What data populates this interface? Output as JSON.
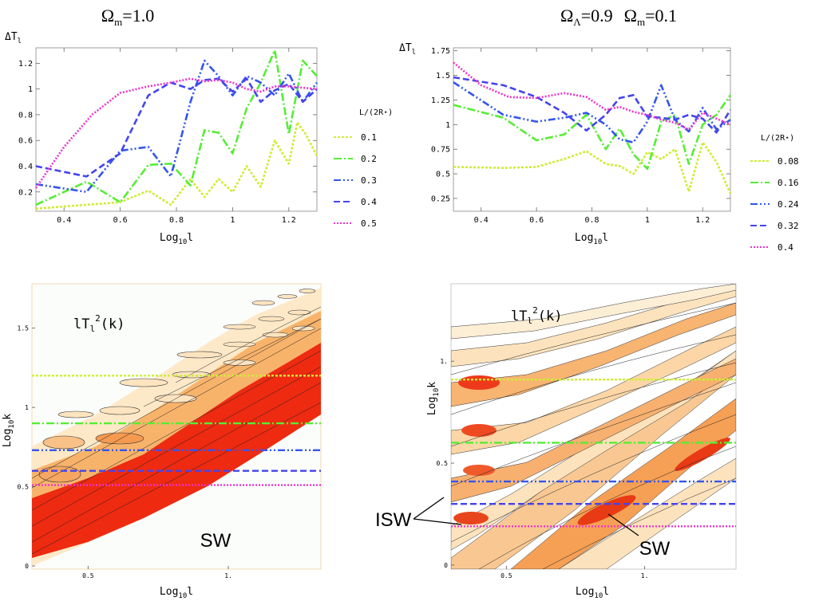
{
  "chart_data": [
    {
      "type": "line",
      "title": "Ωm=1.0",
      "title_main": "Ω",
      "title_sub": "m",
      "title_rest": "=1.0",
      "ylabel": "ΔT",
      "ylabel_sub": "l",
      "xlabel": "Log",
      "xlabel_sub": "10",
      "xlabel_rest": "l",
      "xlim": [
        0.3,
        1.3
      ],
      "ylim": [
        0.05,
        1.32
      ],
      "xticks": [
        0.4,
        0.6,
        0.8,
        1,
        1.2
      ],
      "xtick_labels": [
        "0.4",
        "0.6",
        "0.8",
        "1",
        "1.2"
      ],
      "yticks": [
        0.2,
        0.4,
        0.6,
        0.8,
        1,
        1.2
      ],
      "ytick_labels": [
        "0.2",
        "0.4",
        "0.6",
        "0.8",
        "1",
        "1.2"
      ],
      "legend_title": "L/(2R⋆)",
      "series": [
        {
          "name": "0.1",
          "color": "#ccee33",
          "dash": "3,2",
          "x": [
            0.3,
            0.48,
            0.6,
            0.7,
            0.78,
            0.85,
            0.9,
            0.95,
            1.0,
            1.05,
            1.1,
            1.15,
            1.2,
            1.23,
            1.26,
            1.3
          ],
          "y": [
            0.07,
            0.1,
            0.12,
            0.21,
            0.1,
            0.3,
            0.16,
            0.3,
            0.2,
            0.4,
            0.24,
            0.6,
            0.42,
            0.74,
            0.65,
            0.48
          ]
        },
        {
          "name": "0.2",
          "color": "#55ee33",
          "dash": "10,3,2,3",
          "x": [
            0.3,
            0.48,
            0.6,
            0.7,
            0.78,
            0.85,
            0.9,
            0.95,
            1.0,
            1.05,
            1.1,
            1.15,
            1.2,
            1.25,
            1.3
          ],
          "y": [
            0.1,
            0.28,
            0.12,
            0.41,
            0.42,
            0.25,
            0.68,
            0.66,
            0.5,
            0.85,
            1.05,
            1.3,
            0.65,
            1.22,
            1.1
          ]
        },
        {
          "name": "0.3",
          "color": "#3355ee",
          "dash": "9,3,2,3,2,3",
          "x": [
            0.3,
            0.48,
            0.6,
            0.7,
            0.78,
            0.85,
            0.9,
            0.95,
            1.0,
            1.05,
            1.1,
            1.15,
            1.2,
            1.25,
            1.3
          ],
          "y": [
            0.26,
            0.2,
            0.52,
            0.55,
            0.32,
            0.9,
            1.22,
            1.1,
            0.95,
            1.1,
            1.05,
            0.95,
            1.12,
            0.9,
            1.05
          ]
        },
        {
          "name": "0.4",
          "color": "#4444ee",
          "dash": "8,4",
          "x": [
            0.3,
            0.48,
            0.6,
            0.7,
            0.78,
            0.85,
            0.9,
            0.95,
            1.0,
            1.05,
            1.1,
            1.15,
            1.2,
            1.25,
            1.3
          ],
          "y": [
            0.4,
            0.32,
            0.5,
            0.95,
            1.05,
            1.0,
            1.07,
            1.08,
            0.98,
            1.08,
            0.9,
            0.99,
            1.04,
            0.9,
            1.0
          ]
        },
        {
          "name": "0.5",
          "color": "#ee33cc",
          "dash": "2,2",
          "x": [
            0.3,
            0.4,
            0.5,
            0.6,
            0.7,
            0.78,
            0.85,
            0.9,
            0.95,
            1.0,
            1.05,
            1.1,
            1.15,
            1.2,
            1.3
          ],
          "y": [
            0.23,
            0.55,
            0.8,
            0.97,
            1.02,
            1.05,
            1.08,
            1.06,
            1.07,
            1.05,
            1.0,
            0.98,
            1.02,
            1.02,
            1.0
          ]
        }
      ]
    },
    {
      "type": "line",
      "title": "ΩΛ=0.9   Ωm=0.1",
      "title_a_main": "Ω",
      "title_a_sub": "Λ",
      "title_a_rest": "=0.9",
      "title_b_main": "Ω",
      "title_b_sub": "m",
      "title_b_rest": "=0.1",
      "ylabel": "ΔT",
      "ylabel_sub": "l",
      "xlabel": "Log",
      "xlabel_sub": "10",
      "xlabel_rest": "l",
      "xlim": [
        0.3,
        1.3
      ],
      "ylim": [
        0.12,
        1.78
      ],
      "xticks": [
        0.4,
        0.6,
        0.8,
        1,
        1.2
      ],
      "xtick_labels": [
        "0.4",
        "0.6",
        "0.8",
        "1",
        "1.2"
      ],
      "yticks": [
        0.25,
        0.5,
        0.75,
        1,
        1.25,
        1.5,
        1.75
      ],
      "ytick_labels": [
        "0.25",
        "0.5",
        "0.75",
        "1",
        "1.25",
        "1.5",
        "1.75"
      ],
      "legend_title": "L/(2R⋆)",
      "series": [
        {
          "name": "0.08",
          "color": "#ccee33",
          "dash": "3,2",
          "x": [
            0.3,
            0.48,
            0.6,
            0.7,
            0.78,
            0.85,
            0.9,
            0.95,
            1.0,
            1.05,
            1.1,
            1.15,
            1.2,
            1.25,
            1.3
          ],
          "y": [
            0.57,
            0.56,
            0.57,
            0.65,
            0.73,
            0.6,
            0.58,
            0.5,
            0.72,
            0.65,
            0.75,
            0.32,
            0.82,
            0.62,
            0.3
          ]
        },
        {
          "name": "0.16",
          "color": "#55ee33",
          "dash": "10,3,2,3",
          "x": [
            0.3,
            0.48,
            0.6,
            0.7,
            0.78,
            0.85,
            0.9,
            0.95,
            1.0,
            1.05,
            1.1,
            1.15,
            1.2,
            1.25,
            1.3
          ],
          "y": [
            1.2,
            1.07,
            0.84,
            0.9,
            1.1,
            0.75,
            0.96,
            0.7,
            0.55,
            1.03,
            1.1,
            0.6,
            1.0,
            1.1,
            1.3
          ]
        },
        {
          "name": "0.24",
          "color": "#3355ee",
          "dash": "9,3,2,3,2,3",
          "x": [
            0.3,
            0.48,
            0.6,
            0.7,
            0.78,
            0.85,
            0.9,
            0.95,
            1.0,
            1.05,
            1.1,
            1.15,
            1.2,
            1.25,
            1.3
          ],
          "y": [
            1.43,
            1.1,
            1.03,
            1.07,
            1.12,
            1.0,
            0.85,
            0.82,
            1.03,
            1.4,
            1.05,
            0.93,
            1.17,
            0.95,
            1.05
          ]
        },
        {
          "name": "0.32",
          "color": "#4444ee",
          "dash": "8,4",
          "x": [
            0.3,
            0.48,
            0.6,
            0.7,
            0.78,
            0.85,
            0.9,
            0.95,
            1.0,
            1.05,
            1.1,
            1.15,
            1.2,
            1.25,
            1.3
          ],
          "y": [
            1.48,
            1.4,
            1.28,
            1.12,
            0.94,
            1.1,
            1.27,
            1.3,
            1.08,
            1.07,
            1.05,
            1.1,
            1.06,
            0.92,
            1.15
          ]
        },
        {
          "name": "0.4",
          "color": "#ee33cc",
          "dash": "2,2",
          "x": [
            0.3,
            0.4,
            0.5,
            0.6,
            0.7,
            0.78,
            0.85,
            0.9,
            0.95,
            1.0,
            1.05,
            1.1,
            1.15,
            1.2,
            1.3
          ],
          "y": [
            1.63,
            1.4,
            1.28,
            1.27,
            1.32,
            1.28,
            1.15,
            1.18,
            1.13,
            1.1,
            1.05,
            1.02,
            0.95,
            1.12,
            1.0
          ]
        }
      ]
    },
    {
      "type": "contour",
      "title": "lT_l^2(k)",
      "label_main": "lT",
      "label_sub": "l",
      "label_sup": "2",
      "label_rest": "(k)",
      "xlabel": "Log",
      "xlabel_sub": "10",
      "xlabel_rest": "l",
      "ylabel": "Log",
      "ylabel_sub": "10",
      "ylabel_rest": "k",
      "xlim": [
        0.3,
        1.33
      ],
      "ylim": [
        -0.02,
        1.78
      ],
      "xtick_labels": [
        "0.5",
        "1."
      ],
      "xticks": [
        0.5,
        1.0
      ],
      "ytick_labels": [
        "0",
        "0.5",
        "1",
        "1.5"
      ],
      "yticks": [
        0,
        0.5,
        1,
        1.5
      ],
      "annotation": "SW",
      "lines": [
        {
          "name": "0.1",
          "y": 1.2,
          "color": "#ccee33",
          "dash": "3,2"
        },
        {
          "name": "0.2",
          "y": 0.9,
          "color": "#55ee33",
          "dash": "10,3,2,3"
        },
        {
          "name": "0.3",
          "y": 0.73,
          "color": "#3355ee",
          "dash": "9,3,2,3,2,3"
        },
        {
          "name": "0.4",
          "y": 0.6,
          "color": "#4444ee",
          "dash": "8,4"
        },
        {
          "name": "0.5",
          "y": 0.51,
          "color": "#ee33cc",
          "dash": "2,2"
        }
      ]
    },
    {
      "type": "contour",
      "title": "lT_l^2(k)",
      "label_main": "lT",
      "label_sub": "l",
      "label_sup": "2",
      "label_rest": "(k)",
      "xlabel": "Log",
      "xlabel_sub": "10",
      "xlabel_rest": "l",
      "ylabel": "Log",
      "ylabel_sub": "10",
      "ylabel_rest": "k",
      "xlim": [
        0.3,
        1.33
      ],
      "ylim": [
        -0.02,
        1.38
      ],
      "xtick_labels": [
        "0.5",
        "1."
      ],
      "xticks": [
        0.5,
        1.0
      ],
      "ytick_labels": [
        "0",
        "0.5",
        "1."
      ],
      "yticks": [
        0,
        0.5,
        1.0
      ],
      "annotation_sw": "SW",
      "annotation_isw": "ISW",
      "lines": [
        {
          "name": "0.08",
          "y": 0.91,
          "color": "#ccee33",
          "dash": "3,2"
        },
        {
          "name": "0.16",
          "y": 0.6,
          "color": "#55ee33",
          "dash": "10,3,2,3"
        },
        {
          "name": "0.24",
          "y": 0.41,
          "color": "#3355ee",
          "dash": "9,3,2,3,2,3"
        },
        {
          "name": "0.32",
          "y": 0.3,
          "color": "#4444ee",
          "dash": "8,4"
        },
        {
          "name": "0.4",
          "y": 0.19,
          "color": "#ee33cc",
          "dash": "2,2"
        }
      ]
    }
  ]
}
